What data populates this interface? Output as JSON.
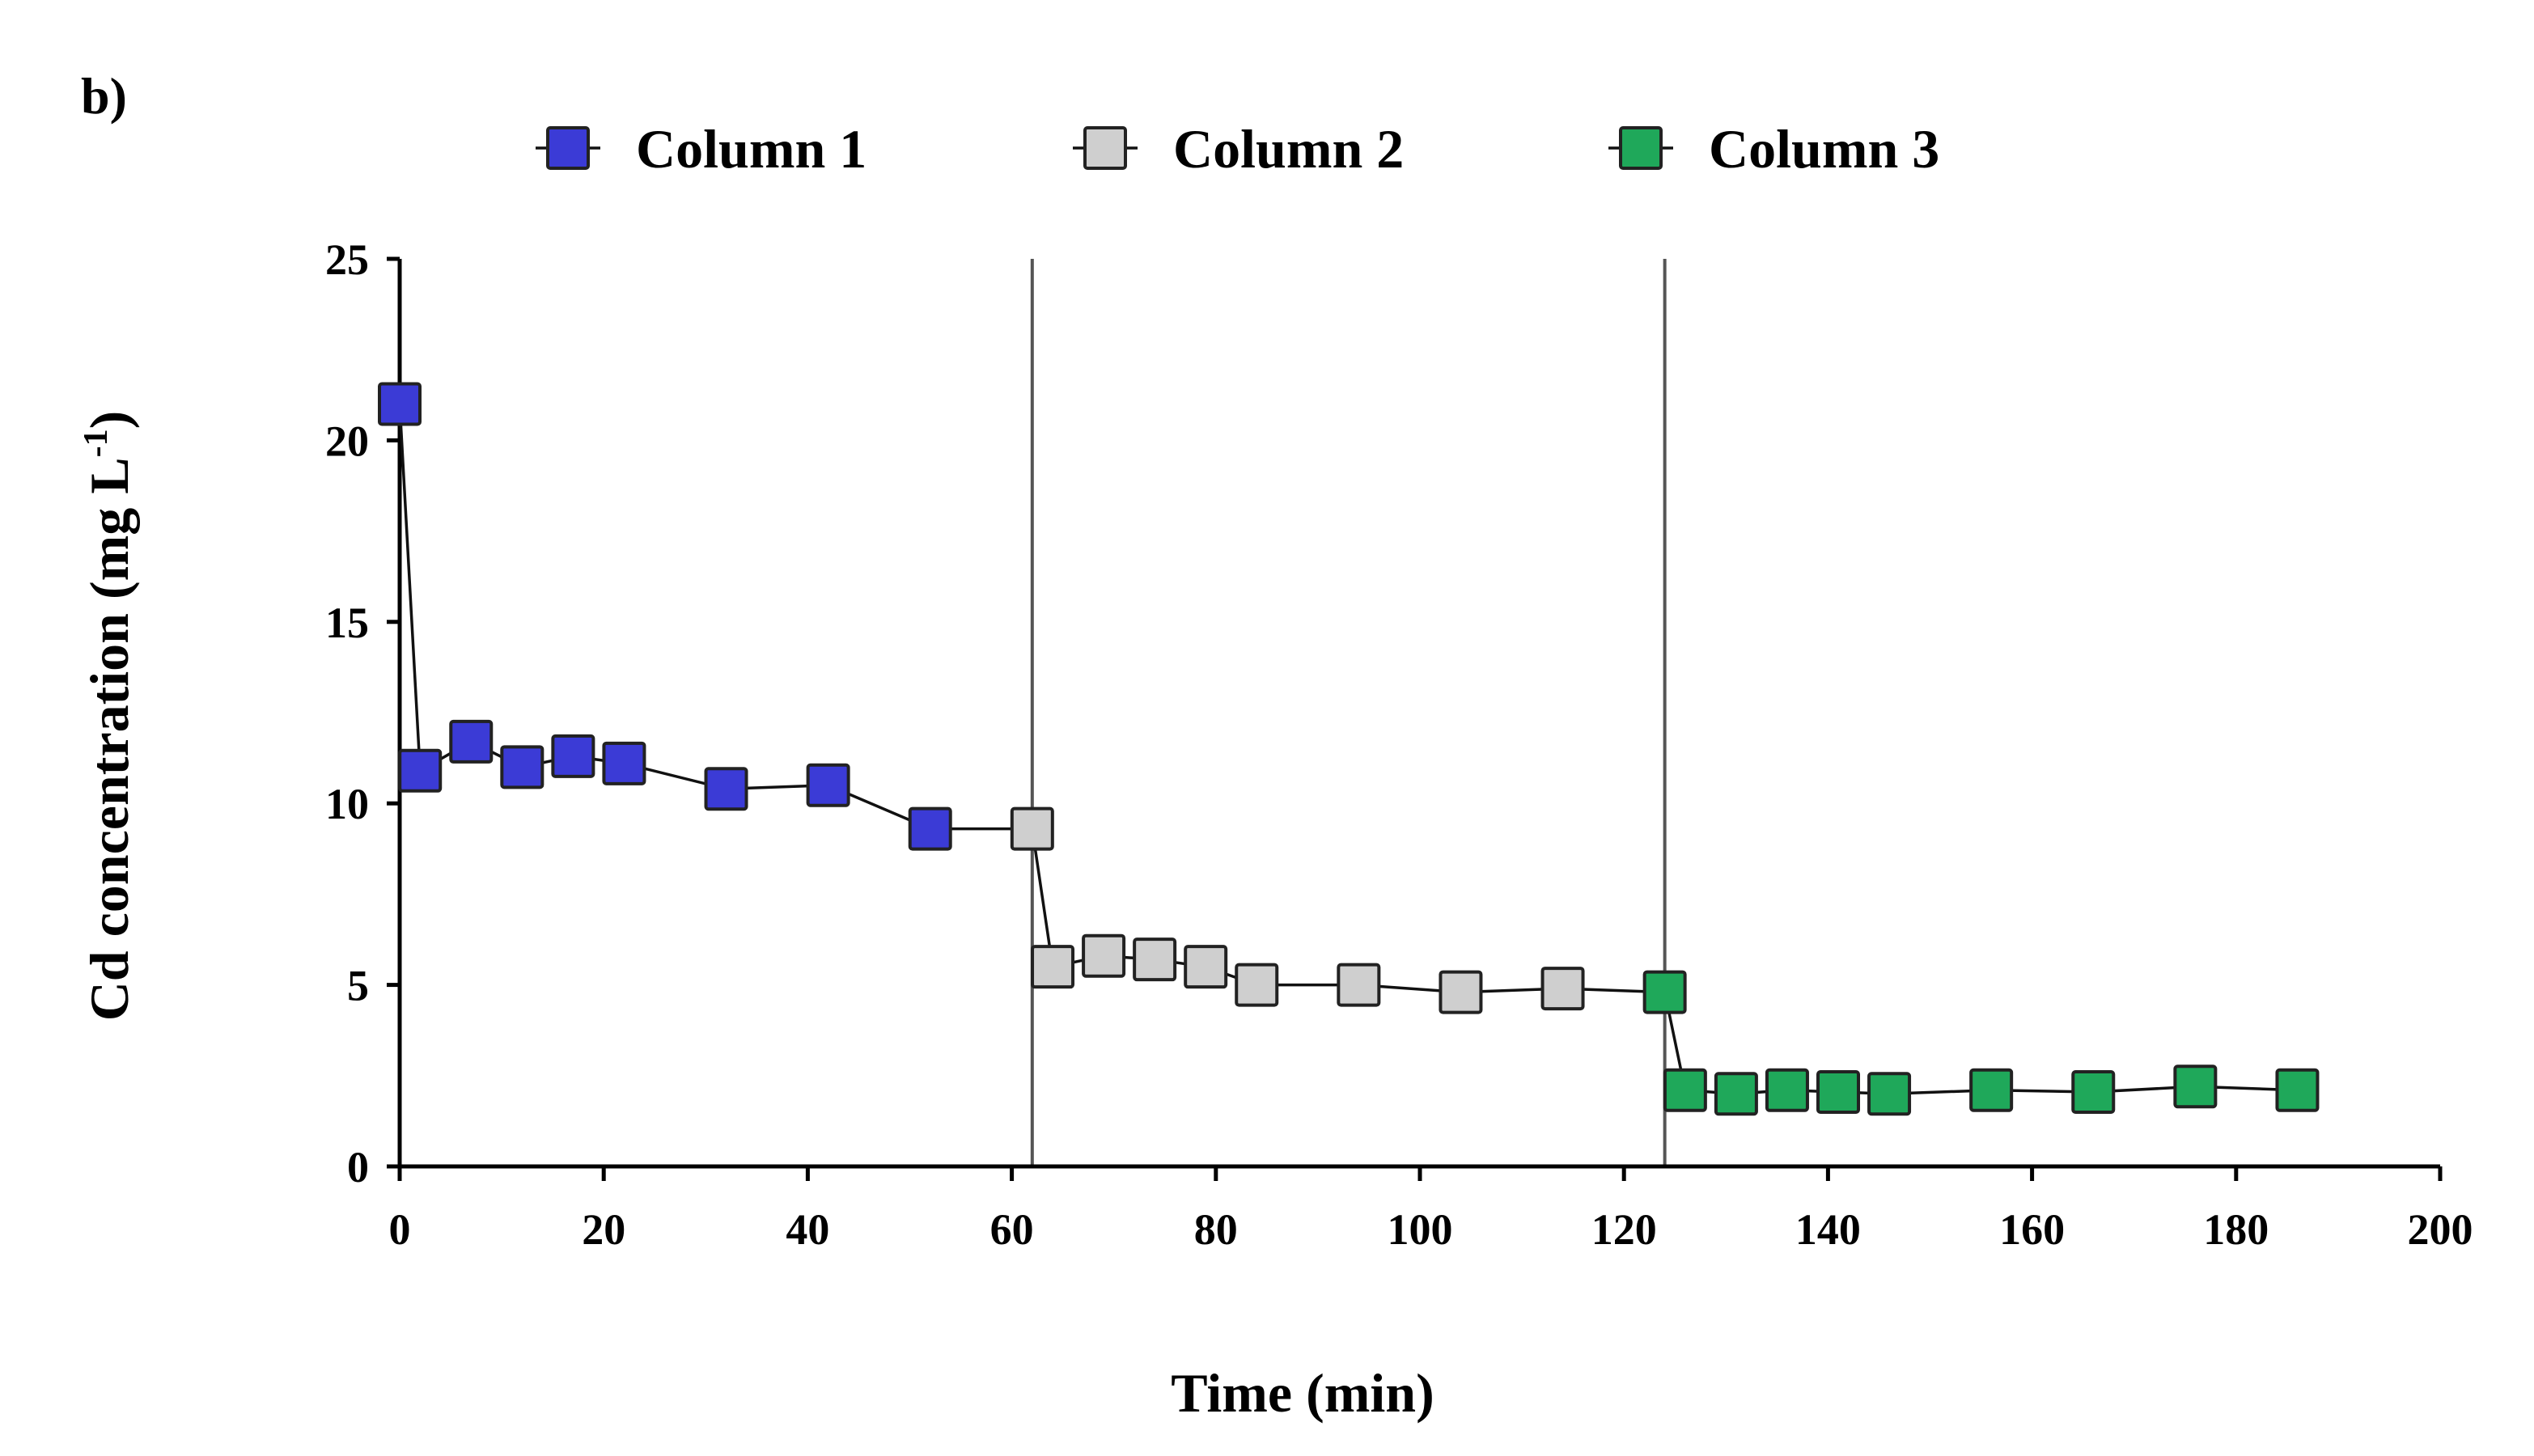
{
  "panel_label": "b)",
  "chart_data": {
    "type": "line",
    "xlabel": "Time (min)",
    "ylabel_main": "Cd concentration  (mg L",
    "ylabel_sup": "-1",
    "ylabel_close": ")",
    "xlim": [
      0,
      200
    ],
    "ylim": [
      0,
      25
    ],
    "xticks": [
      0,
      20,
      40,
      60,
      80,
      100,
      120,
      140,
      160,
      180,
      200
    ],
    "yticks": [
      0,
      5,
      10,
      15,
      20,
      25
    ],
    "vertical_lines": [
      62,
      124
    ],
    "legend_position": "top",
    "series": [
      {
        "name": "Column 1",
        "color": "#3b3bd6",
        "x": [
          0,
          2,
          7,
          12,
          17,
          22,
          32,
          42,
          52
        ],
        "y": [
          21.0,
          10.9,
          11.7,
          11.0,
          11.3,
          11.1,
          10.4,
          10.5,
          9.3
        ]
      },
      {
        "name": "Column 2",
        "color": "#cfcfcf",
        "x": [
          62,
          64,
          69,
          74,
          79,
          84,
          94,
          104,
          114
        ],
        "y": [
          9.3,
          5.5,
          5.8,
          5.7,
          5.5,
          5.0,
          5.0,
          4.8,
          4.9
        ]
      },
      {
        "name": "Column 3",
        "color": "#1fa85a",
        "x": [
          124,
          126,
          131,
          136,
          141,
          146,
          156,
          166,
          176,
          186
        ],
        "y": [
          4.8,
          2.1,
          2.0,
          2.1,
          2.05,
          2.0,
          2.1,
          2.05,
          2.2,
          2.1
        ]
      }
    ]
  }
}
